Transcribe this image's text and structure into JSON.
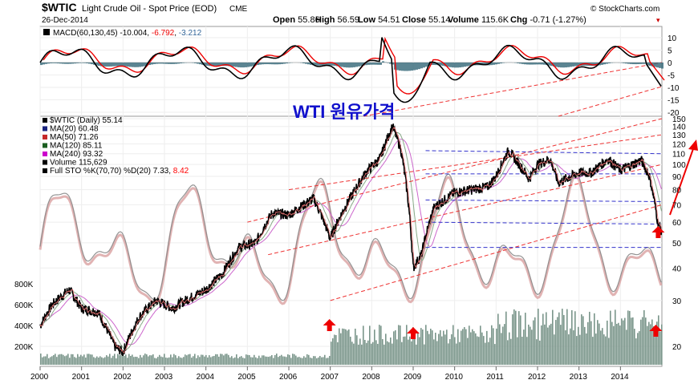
{
  "header": {
    "symbol": "$WTIC",
    "name": "Light Crude Oil - Spot Price (EOD)",
    "exchange": "CME",
    "date": "26-Dec-2014",
    "brand": "© StockCharts.com",
    "ohlc": [
      {
        "label": "Open",
        "value": "55.86"
      },
      {
        "label": "High",
        "value": "56.59"
      },
      {
        "label": "Low",
        "value": "54.51"
      },
      {
        "label": "Close",
        "value": "55.14"
      },
      {
        "label": "Volume",
        "value": "115.6K"
      },
      {
        "label": "Chg",
        "value": "-0.71 (-1.27%)"
      }
    ],
    "chg_marker": "▾"
  },
  "macd": {
    "label": "MACD(60,130,45)",
    "value": "-10.004",
    "signal": "-6.792",
    "hist": "-3.212",
    "yticks": [
      "10",
      "5",
      "0",
      "-5",
      "-10",
      "-15",
      "-20"
    ],
    "colors": {
      "macd": "#000000",
      "signal": "#ff0000",
      "hist": "#336677"
    }
  },
  "annotation": "WTI 원유가격",
  "legend": [
    {
      "id": "price",
      "text": "$WTIC (Daily) 55.14",
      "color": "#000000"
    },
    {
      "id": "ma20",
      "text": "MA(20) 60.48",
      "color": "#1a237e"
    },
    {
      "id": "ma50",
      "text": "MA(50) 71.26",
      "color": "#c62828"
    },
    {
      "id": "ma120",
      "text": "MA(120) 85.11",
      "color": "#1b5e20"
    },
    {
      "id": "ma240",
      "text": "MA(240) 93.32",
      "color": "#cc00cc"
    },
    {
      "id": "volume",
      "text": "Volume 115,629",
      "color": "#000000"
    },
    {
      "id": "sto",
      "text": "Full STO %K(70,70) %D(20) 7.33,",
      "color": "#000000",
      "extra": "8.42",
      "extra_color": "#ff0000"
    }
  ],
  "chart_data": {
    "type": "line",
    "x_ticks": [
      "2000",
      "2001",
      "2002",
      "2003",
      "2004",
      "2005",
      "2006",
      "2007",
      "2008",
      "2009",
      "2010",
      "2011",
      "2012",
      "2013",
      "2014"
    ],
    "y_ticks_right": [
      150,
      140,
      130,
      120,
      110,
      100,
      90,
      80,
      70,
      60,
      50,
      40,
      30,
      20
    ],
    "y_scale": "log",
    "volume_ticks": [
      "800K",
      "600K",
      "400K",
      "200K"
    ],
    "price_series": {
      "name": "$WTIC",
      "x": [
        2000.0,
        2000.3,
        2000.7,
        2001.0,
        2001.4,
        2001.8,
        2002.0,
        2002.4,
        2002.8,
        2003.2,
        2003.5,
        2004.0,
        2004.4,
        2004.8,
        2005.2,
        2005.6,
        2006.0,
        2006.6,
        2007.0,
        2007.5,
        2007.9,
        2008.2,
        2008.5,
        2008.7,
        2008.9,
        2009.0,
        2009.2,
        2009.5,
        2010.0,
        2010.4,
        2010.8,
        2011.0,
        2011.3,
        2011.8,
        2012.0,
        2012.3,
        2012.5,
        2012.8,
        2013.0,
        2013.3,
        2013.7,
        2014.0,
        2014.3,
        2014.5,
        2014.7,
        2014.9,
        2015.0
      ],
      "y": [
        24,
        29,
        33,
        28,
        27,
        20,
        19,
        26,
        30,
        28,
        30,
        33,
        38,
        48,
        50,
        65,
        64,
        74,
        52,
        75,
        95,
        105,
        140,
        115,
        67,
        40,
        45,
        68,
        78,
        80,
        82,
        90,
        113,
        88,
        100,
        105,
        85,
        90,
        93,
        93,
        105,
        95,
        100,
        104,
        90,
        60,
        55
      ]
    },
    "trend_channels": [
      {
        "style": "red-dashed",
        "from": [
          2007.0,
          30
        ],
        "to": [
          2015.0,
          70
        ]
      },
      {
        "style": "red-dashed",
        "from": [
          2005.0,
          60
        ],
        "to": [
          2015.0,
          150
        ]
      },
      {
        "style": "blue-dashed",
        "from": [
          2009.3,
          113
        ],
        "to": [
          2015.0,
          110
        ]
      },
      {
        "style": "blue-dashed",
        "from": [
          2009.3,
          48
        ],
        "to": [
          2015.0,
          48
        ]
      }
    ],
    "markers": [
      {
        "x": 2007.0,
        "label": "low"
      },
      {
        "x": 2009.0,
        "label": "low"
      },
      {
        "x": 2014.95,
        "label": "low"
      },
      {
        "x": 2014.95,
        "label": "price"
      }
    ]
  }
}
